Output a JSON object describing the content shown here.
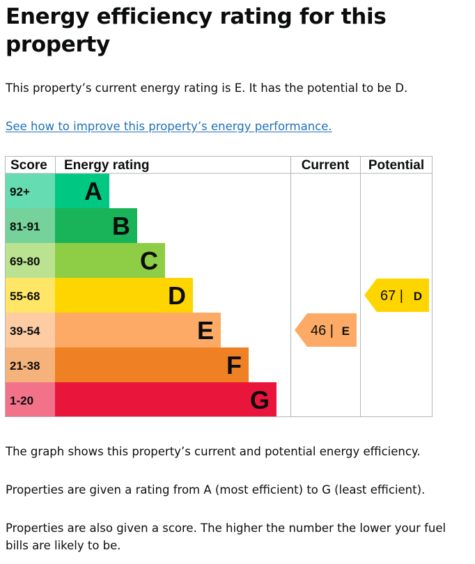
{
  "page": {
    "title": "Energy efficiency rating for this property",
    "summary": "This property’s current energy rating is E. It has the potential to be D.",
    "improve_link": "See how to improve this property’s energy performance.",
    "paragraphs": [
      "The graph shows this property’s current and potential energy efficiency.",
      "Properties are given a rating from A (most efficient) to G (least efficient).",
      "Properties are also given a score. The higher the number the lower your fuel bills are likely to be."
    ]
  },
  "chart_data": {
    "type": "bar",
    "title": "Energy efficiency rating for this property",
    "columns": [
      "Score",
      "Energy rating",
      "Current",
      "Potential"
    ],
    "bands": [
      {
        "score": "92+",
        "letter": "A",
        "color": "#00c781",
        "score_color": "#66dcb3"
      },
      {
        "score": "81-91",
        "letter": "B",
        "color": "#19b459",
        "score_color": "#75d29b"
      },
      {
        "score": "69-80",
        "letter": "C",
        "color": "#8dce46",
        "score_color": "#bbe290"
      },
      {
        "score": "55-68",
        "letter": "D",
        "color": "#ffd500",
        "score_color": "#ffe666"
      },
      {
        "score": "39-54",
        "letter": "E",
        "color": "#fcaa65",
        "score_color": "#fdcca3"
      },
      {
        "score": "21-38",
        "letter": "F",
        "color": "#ef8023",
        "score_color": "#f5b37b"
      },
      {
        "score": "1-20",
        "letter": "G",
        "color": "#e9153b",
        "score_color": "#f27389"
      }
    ],
    "current": {
      "value": 46,
      "letter": "E",
      "value_text": "46 |",
      "color": "#fcaa65"
    },
    "potential": {
      "value": 67,
      "letter": "D",
      "value_text": "67 |",
      "color": "#ffd500"
    }
  }
}
